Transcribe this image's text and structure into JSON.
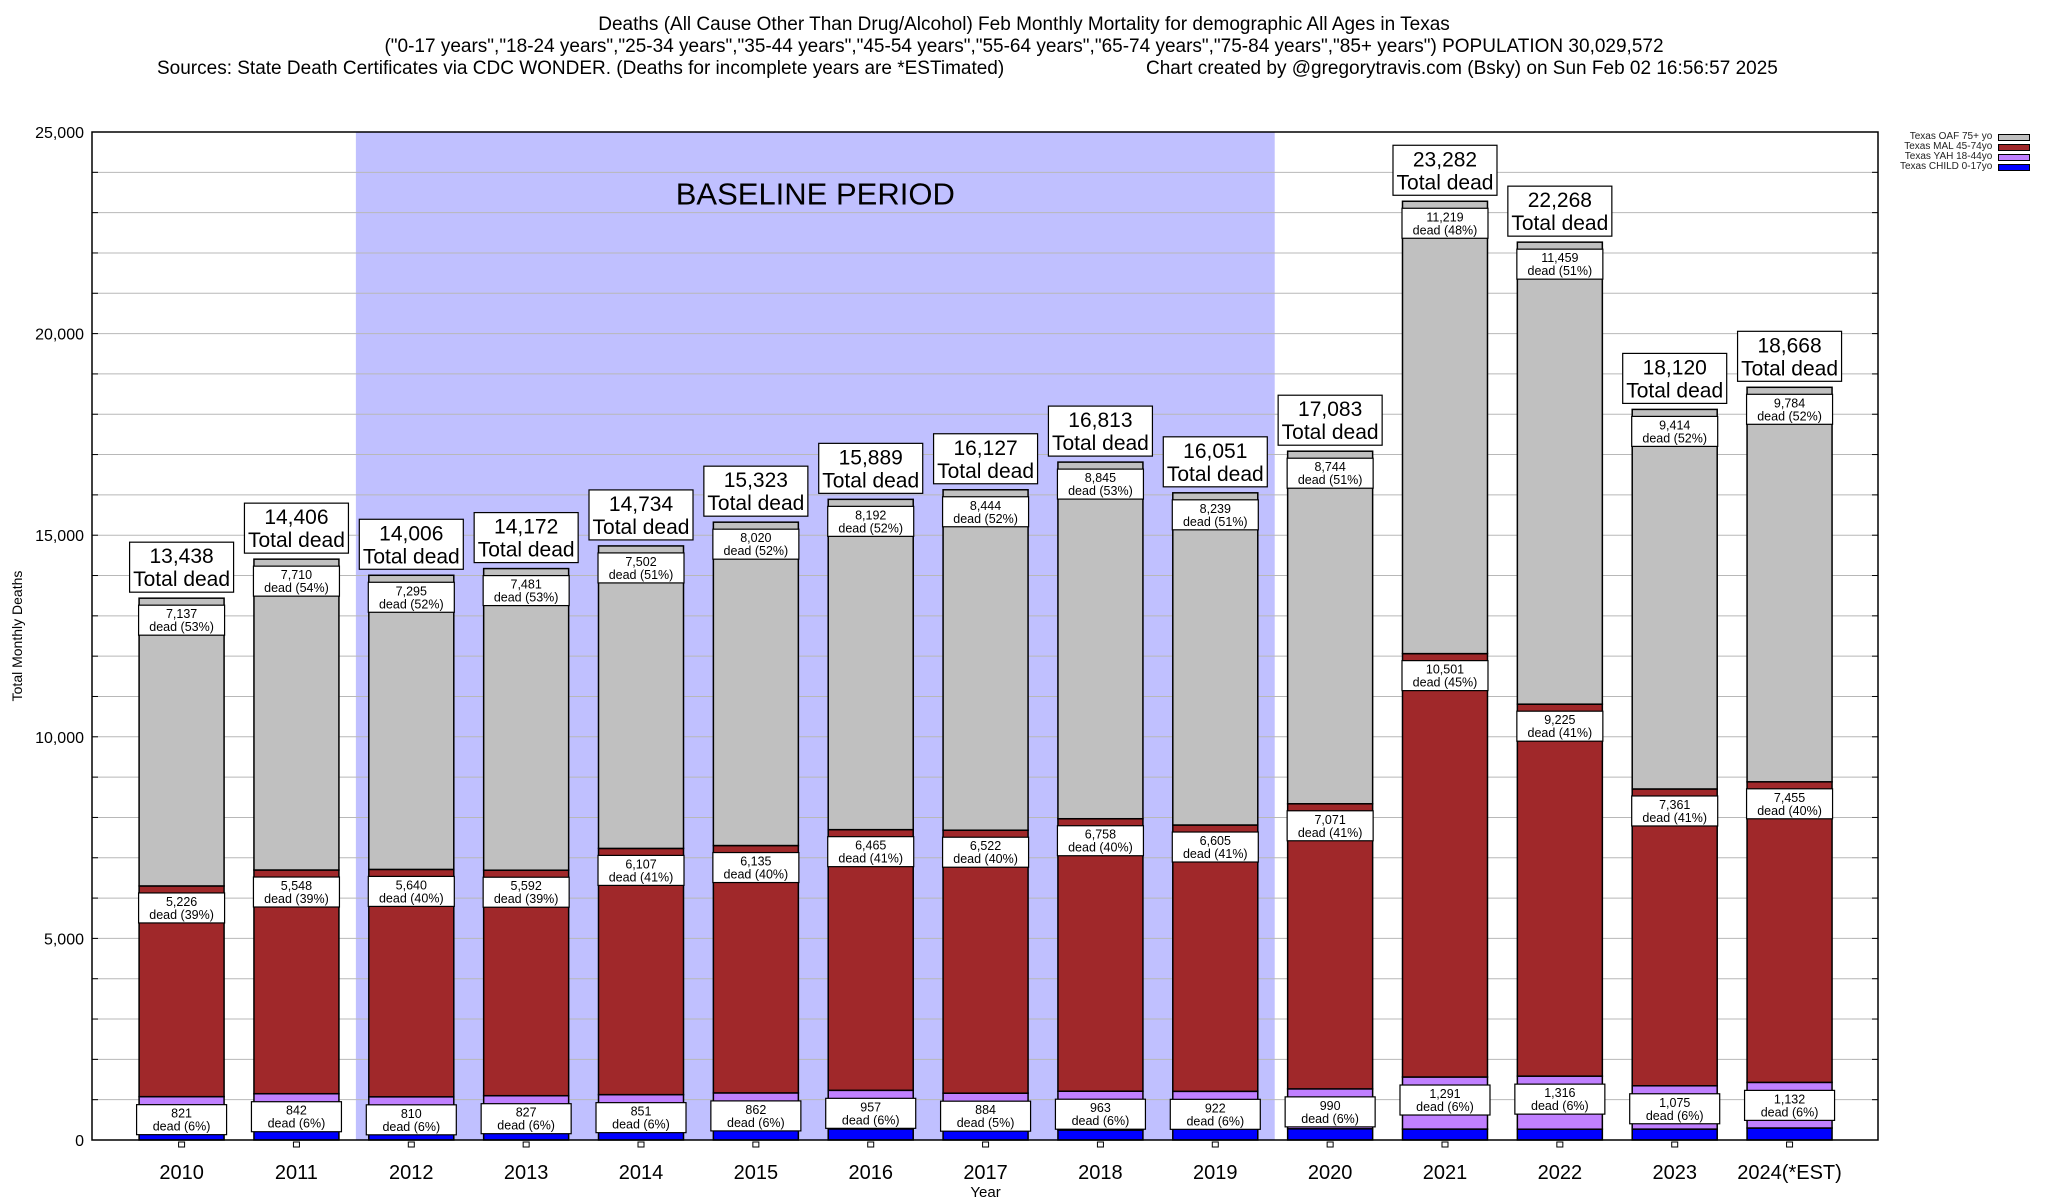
{
  "title": {
    "line1": "Deaths (All Cause Other Than Drug/Alcohol) Feb Monthly Mortality for demographic All Ages in Texas",
    "line2": "(\"0-17 years\",\"18-24 years\",\"25-34 years\",\"35-44 years\",\"45-54 years\",\"55-64 years\",\"65-74 years\",\"75-84 years\",\"85+ years\") POPULATION 30,029,572",
    "sources": "Sources: State Death Certificates via CDC WONDER. (Deaths for incomplete years are *ESTimated)",
    "credit": "Chart created by @gregorytravis.com (Bsky) on Sun Feb 02 16:56:57 2025"
  },
  "chart_data": {
    "type": "bar",
    "stacked": true,
    "title": "Deaths (All Cause Other Than Drug/Alcohol) Feb Monthly Mortality for demographic All Ages in Texas",
    "xlabel": "Year",
    "ylabel": "Total Monthly Deaths",
    "ylim": [
      0,
      25000
    ],
    "yticks": [
      0,
      5000,
      10000,
      15000,
      20000,
      25000
    ],
    "ytick_labels": [
      "0",
      "5,000",
      "10,000",
      "15,000",
      "20,000",
      "25,000"
    ],
    "y_minor_step": 1000,
    "grid": true,
    "legend_position": "top-right",
    "categories": [
      "2010",
      "2011",
      "2012",
      "2013",
      "2014",
      "2015",
      "2016",
      "2017",
      "2018",
      "2019",
      "2020",
      "2021",
      "2022",
      "2023",
      "2024(*EST)"
    ],
    "annotation": {
      "text": "BASELINE PERIOD",
      "from_category": "2012",
      "to_category": "2019",
      "color": "#c0c0ff"
    },
    "total_label_suffix": "Total dead",
    "segment_label_prefix": "dead",
    "totals": [
      13438,
      14406,
      14006,
      14172,
      14734,
      15323,
      15889,
      16127,
      16813,
      16051,
      17083,
      23282,
      22268,
      18120,
      18668
    ],
    "series": [
      {
        "name": "Texas CHILD 0-17yo",
        "color": "#0000ff",
        "values": [
          254,
          306,
          261,
          272,
          274,
          306,
          275,
          277,
          247,
          285,
          278,
          271,
          268,
          270,
          297
        ],
        "labeled": false
      },
      {
        "name": "Texas YAH 18-44yo",
        "color": "#c080ff",
        "values": [
          821,
          842,
          810,
          827,
          851,
          862,
          957,
          884,
          963,
          922,
          990,
          1291,
          1316,
          1075,
          1132
        ],
        "percents": [
          6,
          6,
          6,
          6,
          6,
          6,
          6,
          5,
          6,
          6,
          6,
          6,
          6,
          6,
          6
        ],
        "labeled": true
      },
      {
        "name": "Texas MAL 45-74yo",
        "color": "#a0282a",
        "values": [
          5226,
          5548,
          5640,
          5592,
          6107,
          6135,
          6465,
          6522,
          6758,
          6605,
          7071,
          10501,
          9225,
          7361,
          7455
        ],
        "percents": [
          39,
          39,
          40,
          39,
          41,
          40,
          41,
          40,
          40,
          41,
          41,
          45,
          41,
          41,
          40
        ],
        "labeled": true
      },
      {
        "name": "Texas OAF 75+ yo",
        "color": "#c0c0c0",
        "values": [
          7137,
          7710,
          7295,
          7481,
          7502,
          8020,
          8192,
          8444,
          8845,
          8239,
          8744,
          11219,
          11459,
          9414,
          9784
        ],
        "percents": [
          53,
          54,
          52,
          53,
          51,
          52,
          52,
          52,
          53,
          51,
          51,
          48,
          51,
          52,
          52
        ],
        "labeled": true
      }
    ]
  },
  "legend": {
    "items": [
      {
        "label": "Texas OAF 75+ yo",
        "color": "#c0c0c0"
      },
      {
        "label": "Texas MAL 45-74yo",
        "color": "#a0282a"
      },
      {
        "label": "Texas YAH 18-44yo",
        "color": "#c080ff"
      },
      {
        "label": "Texas CHILD 0-17yo",
        "color": "#0000ff"
      }
    ]
  }
}
